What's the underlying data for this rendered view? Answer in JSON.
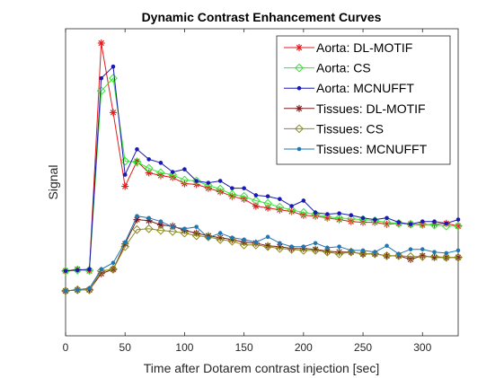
{
  "chart_data": {
    "type": "line",
    "title": "Dynamic Contrast Enhancement Curves",
    "xlabel": "Time after Dotarem contrast injection [sec]",
    "ylabel": "Signal",
    "xlim": [
      0,
      330
    ],
    "ylim": [
      0,
      1
    ],
    "xticks": [
      0,
      50,
      100,
      150,
      200,
      250,
      300
    ],
    "xtick_labels": [
      "0",
      "50",
      "100",
      "150",
      "200",
      "250",
      "300"
    ],
    "grid": false,
    "legend_position": "top-right",
    "x": [
      0,
      10,
      20,
      30,
      40,
      50,
      60,
      70,
      80,
      90,
      100,
      110,
      120,
      130,
      140,
      150,
      160,
      170,
      180,
      190,
      200,
      210,
      220,
      230,
      240,
      250,
      260,
      270,
      280,
      290,
      300,
      310,
      320,
      330
    ],
    "series": [
      {
        "name": "Aorta: DL-MOTIF",
        "color": "#e41a1c",
        "marker": "asterisk",
        "values": [
          0.157,
          0.163,
          0.157,
          1.0,
          0.743,
          0.47,
          0.563,
          0.52,
          0.51,
          0.503,
          0.48,
          0.477,
          0.463,
          0.45,
          0.433,
          0.423,
          0.397,
          0.39,
          0.383,
          0.377,
          0.363,
          0.36,
          0.353,
          0.347,
          0.34,
          0.337,
          0.337,
          0.33,
          0.333,
          0.33,
          0.327,
          0.33,
          0.333,
          0.323
        ]
      },
      {
        "name": "Aorta: CS",
        "color": "#33e633",
        "marker": "diamond",
        "values": [
          0.157,
          0.16,
          0.16,
          0.823,
          0.87,
          0.563,
          0.56,
          0.537,
          0.52,
          0.513,
          0.493,
          0.49,
          0.473,
          0.46,
          0.44,
          0.433,
          0.417,
          0.407,
          0.393,
          0.383,
          0.373,
          0.367,
          0.357,
          0.353,
          0.35,
          0.347,
          0.343,
          0.337,
          0.333,
          0.33,
          0.33,
          0.327,
          0.323,
          0.323
        ]
      },
      {
        "name": "Aorta: MCNUFFT",
        "color": "#1a1ab3",
        "marker": "dot",
        "values": [
          0.157,
          0.16,
          0.163,
          0.87,
          0.913,
          0.513,
          0.607,
          0.57,
          0.557,
          0.523,
          0.533,
          0.49,
          0.483,
          0.49,
          0.463,
          0.463,
          0.437,
          0.433,
          0.423,
          0.397,
          0.417,
          0.373,
          0.367,
          0.37,
          0.363,
          0.353,
          0.347,
          0.353,
          0.337,
          0.33,
          0.34,
          0.34,
          0.333,
          0.347
        ]
      },
      {
        "name": "Tissues: DL-MOTIF",
        "color": "#7a1a1a",
        "marker": "asterisk",
        "values": [
          0.083,
          0.087,
          0.087,
          0.147,
          0.163,
          0.257,
          0.347,
          0.343,
          0.327,
          0.323,
          0.307,
          0.297,
          0.287,
          0.28,
          0.273,
          0.263,
          0.26,
          0.25,
          0.247,
          0.24,
          0.24,
          0.237,
          0.23,
          0.227,
          0.227,
          0.22,
          0.22,
          0.213,
          0.213,
          0.2,
          0.213,
          0.207,
          0.207,
          0.207
        ]
      },
      {
        "name": "Tissues: CS",
        "color": "#8c8c1a",
        "marker": "diamond",
        "values": [
          0.083,
          0.087,
          0.087,
          0.157,
          0.163,
          0.247,
          0.31,
          0.313,
          0.307,
          0.303,
          0.297,
          0.287,
          0.283,
          0.273,
          0.267,
          0.253,
          0.253,
          0.247,
          0.24,
          0.237,
          0.233,
          0.233,
          0.227,
          0.22,
          0.227,
          0.22,
          0.22,
          0.213,
          0.213,
          0.21,
          0.21,
          0.21,
          0.207,
          0.207
        ]
      },
      {
        "name": "Tissues: MCNUFFT",
        "color": "#1f77b4",
        "marker": "dot",
        "values": [
          0.083,
          0.087,
          0.093,
          0.163,
          0.187,
          0.263,
          0.36,
          0.353,
          0.34,
          0.32,
          0.313,
          0.32,
          0.28,
          0.297,
          0.28,
          0.273,
          0.263,
          0.283,
          0.26,
          0.247,
          0.247,
          0.26,
          0.243,
          0.247,
          0.233,
          0.233,
          0.227,
          0.25,
          0.22,
          0.237,
          0.237,
          0.227,
          0.223,
          0.233
        ]
      }
    ]
  }
}
